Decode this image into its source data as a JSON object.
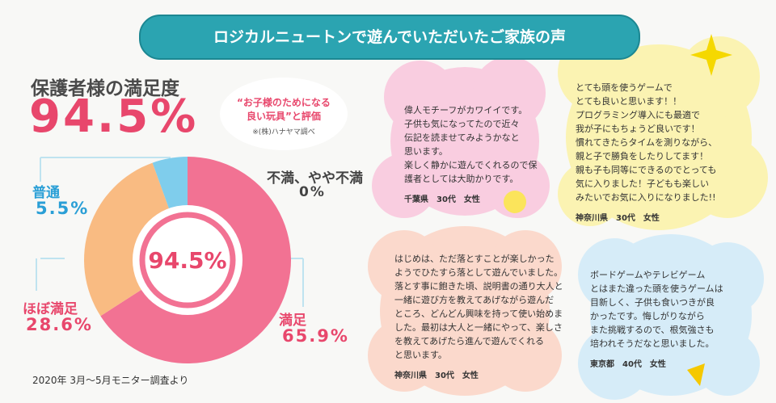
{
  "banner": "ロジカルニュートンで遊んでいただいたご家族の声",
  "satisfaction_title": "保護者様の満足度",
  "satisfaction_headline": "94.5%",
  "quote": {
    "line1": "“お子様のためになる",
    "line2": "良い玩具”と評価",
    "note": "※(株)ハナヤマ調べ"
  },
  "chart_data": {
    "type": "donut",
    "categories": [
      "満足",
      "ほぼ満足",
      "普通",
      "不満、やや不満"
    ],
    "values": [
      65.9,
      28.6,
      5.5,
      0
    ],
    "value_labels": [
      "65.9%",
      "28.6%",
      "5.5%",
      "0%"
    ],
    "colors": [
      "#f27293",
      "#f9bb82",
      "#7fcdec",
      "#cccccc"
    ],
    "center_label": "94.5%"
  },
  "footnote": "2020年 3月〜5月モニター調査より",
  "testimonials": [
    {
      "lines": [
        "偉人モチーフがカワイイです。",
        "子供も気になってたので近々",
        "伝記を読ませてみようかなと",
        "思います。",
        "楽しく静かに遊んでくれるので保",
        "護者としては大助かりです。"
      ],
      "author": "千葉県　30代　女性"
    },
    {
      "lines": [
        "とても頭を使うゲームで",
        "とても良いと思います！！",
        "プログラミング導入にも最適で",
        "我が子にもちょうど良いです！",
        "慣れてきたらタイムを測りながら、",
        "親と子で勝負をしたりしてます！",
        "親も子も同等にできるのでとっても",
        "気に入りました！子どもも楽しい",
        "みたいでお気に入りになりました!!"
      ],
      "author": "神奈川県　30代　女性"
    },
    {
      "lines": [
        "はじめは、ただ落とすことが楽しかった",
        "ようでひたすら落として遊んでいました。",
        "落とす事に飽きた頃、説明書の通り大人と",
        "一緒に遊び方を教えてあげながら遊んだ",
        "ところ、どんどん興味を持って使い始めま",
        "した。最初は大人と一緒にやって、楽しさ",
        "を教えてあげたら進んで遊んでくれる",
        "と思います。"
      ],
      "author": "神奈川県　30代　女性"
    },
    {
      "lines": [
        "ボードゲームやテレビゲーム",
        "とはまた違った頭を使うゲームは",
        "目新しく、子供も食いつきが良",
        "かったです。悔しがりながら",
        "また挑戦するので、根気強さも",
        "培われそうだなと思いました。"
      ],
      "author": "東京都　40代　女性"
    }
  ]
}
